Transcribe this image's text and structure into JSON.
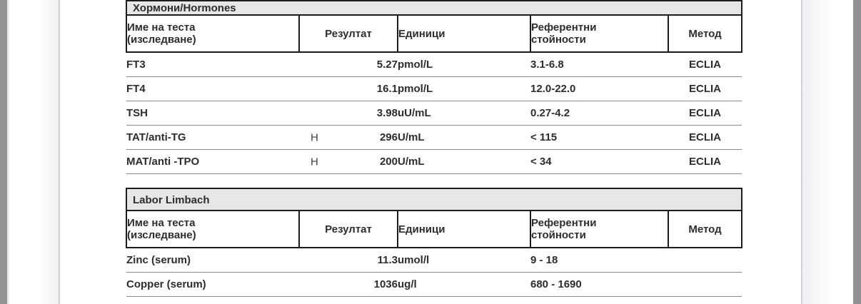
{
  "viewer": {
    "page_background": "#ffffff"
  },
  "colors": {
    "title_bar_bg": "#e7e7e7",
    "table_border": "#1d1d1d",
    "row_separator": "#8a8a8a",
    "text": "#2d2d2d",
    "left_edge_strip": "#939393",
    "right_edge_strip": "#8f8f94",
    "page_gutter_band": "#eff0f3",
    "page_gutter_line": "#cfd0d5"
  },
  "column_headers": [
    {
      "label": "Име на теста\n(изследване)"
    },
    {
      "label": "Резултат"
    },
    {
      "label": "Единици"
    },
    {
      "label": "Референтни\nстойности"
    },
    {
      "label": "Метод"
    }
  ],
  "tables": [
    {
      "title": "Хормони/Hormones",
      "rows": [
        {
          "name": "FT3",
          "flag": "",
          "result": "5.27",
          "units": "pmol/L",
          "reference": "3.1-6.8",
          "method": "ECLIA"
        },
        {
          "name": "FT4",
          "flag": "",
          "result": "16.1",
          "units": "pmol/L",
          "reference": "12.0-22.0",
          "method": "ECLIA"
        },
        {
          "name": "TSH",
          "flag": "",
          "result": "3.98",
          "units": "uU/mL",
          "reference": "0.27-4.2",
          "method": "ECLIA"
        },
        {
          "name": "TAT/anti-TG",
          "flag": "H",
          "result": "296",
          "units": "U/mL",
          "reference": "< 115",
          "method": "ECLIA"
        },
        {
          "name": "MAT/anti -TPO",
          "flag": "H",
          "result": "200",
          "units": "U/mL",
          "reference": "< 34",
          "method": "ECLIA"
        }
      ]
    },
    {
      "title": "Labor Limbach",
      "rows": [
        {
          "name": "Zinc (serum)",
          "flag": "",
          "result": "11.3",
          "units": "umol/l",
          "reference": "9 - 18",
          "method": ""
        },
        {
          "name": "Copper (serum)",
          "flag": "",
          "result": "1036",
          "units": "ug/l",
          "reference": "680 - 1690",
          "method": ""
        }
      ]
    }
  ]
}
